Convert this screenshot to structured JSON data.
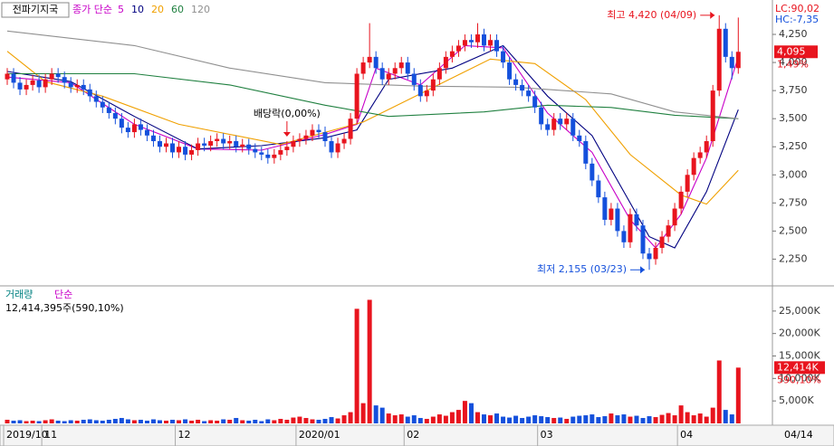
{
  "chart_data": {
    "type": "candlestick",
    "title": "전파기지국",
    "legend_label": "종가 단순",
    "lc": "LC:90,02",
    "hc": "HC:-7,35",
    "categories": [
      "2019/10",
      null,
      null,
      null,
      null,
      null,
      "11",
      null,
      null,
      null,
      null,
      null,
      null,
      null,
      null,
      null,
      null,
      null,
      null,
      null,
      null,
      null,
      null,
      null,
      null,
      null,
      null,
      "12",
      null,
      null,
      null,
      null,
      null,
      null,
      null,
      null,
      null,
      null,
      null,
      null,
      null,
      null,
      null,
      null,
      null,
      null,
      "2020/01",
      null,
      null,
      null,
      null,
      null,
      null,
      null,
      null,
      null,
      null,
      null,
      null,
      null,
      null,
      null,
      null,
      "02",
      null,
      null,
      null,
      null,
      null,
      null,
      null,
      null,
      null,
      null,
      null,
      null,
      null,
      null,
      null,
      null,
      null,
      null,
      null,
      null,
      "03",
      null,
      null,
      null,
      null,
      null,
      null,
      null,
      null,
      null,
      null,
      null,
      null,
      null,
      null,
      null,
      null,
      null,
      null,
      null,
      null,
      null,
      "04",
      null,
      null,
      null,
      null,
      null,
      null,
      null,
      null,
      null
    ],
    "last_date": "04/14",
    "open": [
      3850,
      3900,
      3820,
      3760,
      3800,
      3840,
      3780,
      3850,
      3900,
      3870,
      3820,
      3780,
      3800,
      3760,
      3700,
      3650,
      3600,
      3550,
      3500,
      3420,
      3380,
      3450,
      3400,
      3350,
      3300,
      3250,
      3280,
      3200,
      3250,
      3180,
      3220,
      3280,
      3260,
      3300,
      3320,
      3280,
      3300,
      3250,
      3270,
      3230,
      3200,
      3180,
      3150,
      3180,
      3220,
      3250,
      3300,
      3320,
      3350,
      3400,
      3380,
      3300,
      3200,
      3280,
      3320,
      3500,
      3900,
      4000,
      4050,
      3950,
      3850,
      3900,
      3950,
      4000,
      3900,
      3800,
      3700,
      3750,
      3850,
      3950,
      4050,
      4100,
      4150,
      4200,
      4180,
      4250,
      4150,
      4200,
      4100,
      4000,
      3850,
      3800,
      3750,
      3700,
      3600,
      3450,
      3400,
      3500,
      3450,
      3500,
      3350,
      3300,
      3100,
      2950,
      2800,
      2600,
      2700,
      2500,
      2400,
      2650,
      2550,
      2300,
      2250,
      2350,
      2450,
      2550,
      2700,
      2850,
      3000,
      3150,
      3200,
      3300,
      3750,
      4300,
      4050,
      3950
    ],
    "high": [
      3950,
      3950,
      3870,
      3850,
      3890,
      3890,
      3900,
      3950,
      3950,
      3920,
      3870,
      3850,
      3850,
      3810,
      3750,
      3700,
      3650,
      3600,
      3550,
      3470,
      3500,
      3500,
      3450,
      3400,
      3350,
      3330,
      3330,
      3300,
      3300,
      3270,
      3330,
      3330,
      3350,
      3370,
      3370,
      3350,
      3350,
      3320,
      3320,
      3280,
      3250,
      3230,
      3230,
      3270,
      3300,
      3350,
      3370,
      3400,
      3450,
      3450,
      3430,
      3350,
      3330,
      3370,
      3550,
      3950,
      4050,
      4350,
      4100,
      4000,
      3950,
      4000,
      4050,
      4050,
      3950,
      3850,
      3800,
      3900,
      4000,
      4100,
      4150,
      4200,
      4250,
      4250,
      4350,
      4300,
      4250,
      4250,
      4150,
      4050,
      3900,
      3850,
      3800,
      3750,
      3650,
      3500,
      3550,
      3550,
      3550,
      3550,
      3400,
      3350,
      3150,
      3000,
      2850,
      2750,
      2750,
      2550,
      2700,
      2700,
      2600,
      2350,
      2400,
      2500,
      2600,
      2750,
      2900,
      3050,
      3200,
      3250,
      3350,
      3800,
      4420,
      4350,
      4100,
      4400
    ],
    "low": [
      3800,
      3770,
      3710,
      3710,
      3750,
      3730,
      3730,
      3800,
      3820,
      3770,
      3730,
      3730,
      3710,
      3650,
      3600,
      3550,
      3500,
      3450,
      3370,
      3330,
      3330,
      3350,
      3300,
      3250,
      3200,
      3200,
      3150,
      3150,
      3130,
      3130,
      3170,
      3210,
      3210,
      3250,
      3230,
      3230,
      3200,
      3200,
      3180,
      3150,
      3130,
      3100,
      3100,
      3130,
      3170,
      3200,
      3250,
      3270,
      3300,
      3330,
      3250,
      3150,
      3150,
      3230,
      3270,
      3450,
      3850,
      3950,
      3900,
      3800,
      3800,
      3850,
      3900,
      3850,
      3750,
      3650,
      3650,
      3700,
      3800,
      3900,
      4000,
      4050,
      4100,
      4130,
      4130,
      4100,
      4100,
      4050,
      3950,
      3800,
      3750,
      3700,
      3650,
      3550,
      3400,
      3350,
      3350,
      3400,
      3400,
      3300,
      3250,
      3050,
      2900,
      2750,
      2550,
      2550,
      2450,
      2350,
      2350,
      2500,
      2250,
      2155,
      2200,
      2300,
      2400,
      2500,
      2650,
      2800,
      2950,
      3100,
      3150,
      3250,
      3700,
      4000,
      3850,
      3900
    ],
    "close": [
      3900,
      3820,
      3760,
      3800,
      3840,
      3780,
      3850,
      3900,
      3870,
      3820,
      3780,
      3800,
      3760,
      3700,
      3650,
      3600,
      3550,
      3500,
      3420,
      3380,
      3450,
      3400,
      3350,
      3300,
      3250,
      3280,
      3200,
      3250,
      3180,
      3220,
      3280,
      3260,
      3300,
      3320,
      3280,
      3300,
      3250,
      3270,
      3230,
      3200,
      3180,
      3150,
      3180,
      3220,
      3250,
      3300,
      3320,
      3350,
      3400,
      3380,
      3300,
      3200,
      3280,
      3320,
      3500,
      3900,
      4000,
      4050,
      3950,
      3850,
      3900,
      3950,
      4000,
      3900,
      3800,
      3700,
      3750,
      3850,
      3950,
      4050,
      4100,
      4150,
      4200,
      4180,
      4250,
      4150,
      4200,
      4100,
      4000,
      3850,
      3800,
      3750,
      3700,
      3600,
      3450,
      3400,
      3500,
      3450,
      3500,
      3350,
      3300,
      3100,
      2950,
      2800,
      2600,
      2700,
      2500,
      2400,
      2650,
      2550,
      2300,
      2250,
      2350,
      2450,
      2550,
      2700,
      2850,
      3000,
      3150,
      3200,
      3300,
      3750,
      4300,
      4050,
      3950,
      4095
    ],
    "up_color": "#e8141e",
    "down_color": "#1450dc",
    "ylim": [
      2020,
      4540
    ],
    "yticks": [
      {
        "value": 2250,
        "label": "2,250"
      },
      {
        "value": 2500,
        "label": "2,500"
      },
      {
        "value": 2750,
        "label": "2,750"
      },
      {
        "value": 3000,
        "label": "3,000"
      },
      {
        "value": 3250,
        "label": "3,250"
      },
      {
        "value": 3500,
        "label": "3,500"
      },
      {
        "value": 3750,
        "label": "3,750"
      },
      {
        "value": 4000,
        "label": "4,000"
      },
      {
        "value": 4250,
        "label": "4,250"
      }
    ],
    "close_label": "4,095",
    "change_label": "1,49%",
    "series": [
      {
        "name": "5",
        "color": "#c800c8",
        "x": [
          0,
          10,
          20,
          30,
          40,
          50,
          55,
          58,
          65,
          72,
          78,
          85,
          92,
          98,
          102,
          106,
          110,
          115
        ],
        "values": [
          3870,
          3820,
          3450,
          3230,
          3220,
          3360,
          3450,
          3950,
          3800,
          4150,
          4130,
          3550,
          3200,
          2600,
          2350,
          2650,
          3150,
          4050
        ]
      },
      {
        "name": "10",
        "color": "#000080",
        "x": [
          0,
          10,
          20,
          30,
          40,
          50,
          55,
          60,
          70,
          78,
          85,
          92,
          97,
          101,
          105,
          110,
          115
        ],
        "values": [
          3920,
          3830,
          3520,
          3230,
          3260,
          3330,
          3400,
          3850,
          3950,
          4150,
          3700,
          3350,
          2850,
          2450,
          2350,
          2850,
          3580
        ]
      },
      {
        "name": "20",
        "color": "#f0a000",
        "x": [
          0,
          6,
          15,
          27,
          43,
          56,
          66,
          76,
          83,
          91,
          98,
          106,
          110,
          115
        ],
        "values": [
          4100,
          3830,
          3700,
          3450,
          3270,
          3470,
          3750,
          4030,
          3990,
          3670,
          3180,
          2820,
          2740,
          3040
        ]
      },
      {
        "name": "60",
        "color": "#208040",
        "x": [
          0,
          20,
          35,
          50,
          60,
          75,
          85,
          95,
          105,
          115
        ],
        "values": [
          3900,
          3900,
          3800,
          3620,
          3520,
          3560,
          3620,
          3600,
          3530,
          3500
        ]
      },
      {
        "name": "120",
        "color": "#909090",
        "x": [
          0,
          20,
          35,
          50,
          65,
          80,
          95,
          105,
          115
        ],
        "values": [
          4280,
          4150,
          3950,
          3820,
          3790,
          3780,
          3720,
          3560,
          3500
        ]
      }
    ],
    "annotations": [
      {
        "text": "최고 4,420 (04/09)",
        "index": 112,
        "value": 4420,
        "color": "#e8141e"
      },
      {
        "text": "최저 2,155 (03/23)",
        "index": 101,
        "value": 2155,
        "color": "#1450dc"
      },
      {
        "text": "배당락(0,00%)",
        "index": 44,
        "value": 3300,
        "color": "#000000"
      }
    ],
    "volume": {
      "name": "거래량",
      "method": "단순",
      "info": "12,414,395주(590,10%)",
      "values": [
        800,
        600,
        700,
        500,
        600,
        500,
        700,
        900,
        600,
        500,
        700,
        600,
        800,
        900,
        700,
        600,
        800,
        1000,
        1200,
        900,
        700,
        800,
        600,
        900,
        700,
        600,
        800,
        700,
        900,
        600,
        800,
        500,
        700,
        600,
        900,
        800,
        1200,
        700,
        600,
        800,
        500,
        900,
        700,
        1000,
        800,
        1300,
        1500,
        1200,
        900,
        800,
        1000,
        1400,
        1100,
        1800,
        2500,
        25500,
        4500,
        27500,
        4000,
        3500,
        2200,
        1800,
        2000,
        1500,
        1800,
        1200,
        1000,
        1500,
        2000,
        1700,
        2500,
        3000,
        5000,
        4500,
        2500,
        2000,
        1800,
        2200,
        1500,
        1300,
        1700,
        1200,
        1500,
        1800,
        1600,
        1400,
        1200,
        1300,
        1000,
        1500,
        1700,
        1800,
        2000,
        1400,
        1600,
        2200,
        1800,
        2000,
        1500,
        1700,
        1200,
        1600,
        1400,
        1900,
        2300,
        1800,
        4000,
        2500,
        1800,
        2200,
        1500,
        3500,
        14000,
        3000,
        2000,
        12414
      ],
      "ylim": [
        0,
        30000
      ],
      "yticks": [
        {
          "value": 5000,
          "label": "5,000K"
        },
        {
          "value": 10000,
          "label": "10,000K"
        },
        {
          "value": 15000,
          "label": "15,000K"
        },
        {
          "value": 20000,
          "label": "20,000K"
        },
        {
          "value": 25000,
          "label": "25,000K"
        }
      ],
      "last_label": "12,414K",
      "change_label": "590,10%"
    }
  }
}
